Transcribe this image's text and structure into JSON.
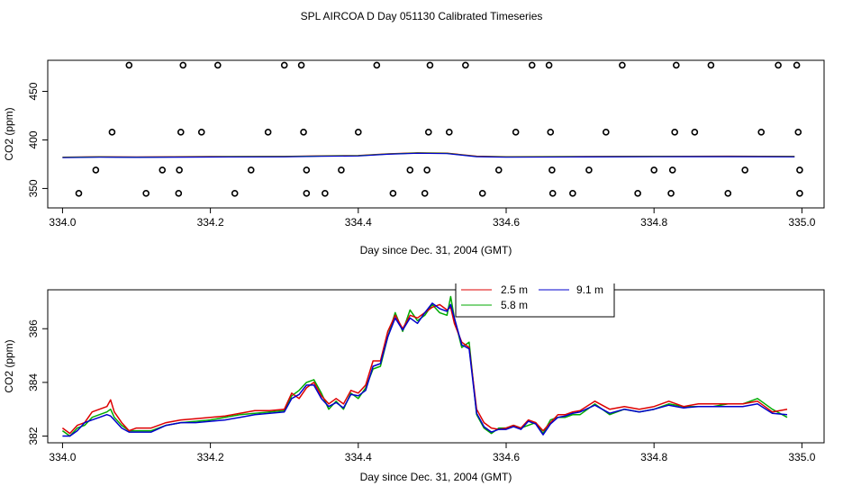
{
  "chart_data": {
    "title": "SPL AIRCOA D  Day 051130  Calibrated Timeseries",
    "panels": [
      {
        "type": "scatter+line",
        "xlabel": "Day since Dec. 31, 2004 (GMT)",
        "ylabel": "CO2 (ppm)",
        "xlim": [
          333.98,
          335.03
        ],
        "ylim": [
          330,
          482
        ],
        "xticks": [
          334.0,
          334.2,
          334.4,
          334.6,
          334.8,
          335.0
        ],
        "xtick_labels": [
          "334.0",
          "334.2",
          "334.4",
          "334.6",
          "334.8",
          "335.0"
        ],
        "yticks": [
          350,
          400,
          450
        ],
        "ytick_labels": [
          "350",
          "400",
          "450"
        ],
        "points": {
          "y477": [
            334.09,
            334.163,
            334.21,
            334.3,
            334.323,
            334.425,
            334.497,
            334.545,
            334.635,
            334.658,
            334.757,
            334.83,
            334.877,
            334.968,
            334.993
          ],
          "y408": [
            334.067,
            334.16,
            334.188,
            334.278,
            334.326,
            334.4,
            334.495,
            334.523,
            334.613,
            334.66,
            334.735,
            334.828,
            334.855,
            334.945,
            334.995
          ],
          "y369": [
            334.045,
            334.135,
            334.158,
            334.255,
            334.33,
            334.377,
            334.47,
            334.493,
            334.59,
            334.662,
            334.712,
            334.8,
            334.825,
            334.923,
            334.997
          ],
          "y345": [
            334.022,
            334.113,
            334.157,
            334.233,
            334.33,
            334.355,
            334.447,
            334.49,
            334.568,
            334.663,
            334.69,
            334.778,
            334.823,
            334.9,
            334.997
          ]
        },
        "line": {
          "x": [
            334.0,
            334.05,
            334.1,
            334.2,
            334.3,
            334.35,
            334.4,
            334.44,
            334.48,
            334.52,
            334.56,
            334.6,
            334.7,
            334.8,
            334.9,
            334.99
          ],
          "y": [
            382,
            382.5,
            382.3,
            382.6,
            382.8,
            383.4,
            383.8,
            385.5,
            386.5,
            386.2,
            383.0,
            382.5,
            382.7,
            382.9,
            383.0,
            382.8
          ]
        }
      },
      {
        "type": "line",
        "xlabel": "Day since Dec. 31, 2004 (GMT)",
        "ylabel": "CO2 (ppm)",
        "xlim": [
          333.98,
          335.03
        ],
        "ylim": [
          381.75,
          387.45
        ],
        "xticks": [
          334.0,
          334.2,
          334.4,
          334.6,
          334.8,
          335.0
        ],
        "xtick_labels": [
          "334.0",
          "334.2",
          "334.4",
          "334.6",
          "334.8",
          "335.0"
        ],
        "yticks": [
          382,
          384,
          386
        ],
        "ytick_labels": [
          "382",
          "384",
          "386"
        ],
        "legend": {
          "placement": "top-center",
          "entries": [
            "2.5 m",
            "5.8 m",
            "9.1 m"
          ]
        },
        "x": [
          334.0,
          334.01,
          334.02,
          334.03,
          334.04,
          334.05,
          334.06,
          334.065,
          334.07,
          334.08,
          334.09,
          334.1,
          334.12,
          334.14,
          334.16,
          334.18,
          334.2,
          334.22,
          334.24,
          334.26,
          334.28,
          334.3,
          334.31,
          334.32,
          334.33,
          334.34,
          334.35,
          334.36,
          334.37,
          334.38,
          334.39,
          334.4,
          334.41,
          334.42,
          334.43,
          334.44,
          334.45,
          334.46,
          334.47,
          334.48,
          334.49,
          334.5,
          334.51,
          334.52,
          334.525,
          334.53,
          334.54,
          334.55,
          334.56,
          334.57,
          334.58,
          334.59,
          334.6,
          334.61,
          334.62,
          334.63,
          334.64,
          334.65,
          334.66,
          334.67,
          334.68,
          334.69,
          334.7,
          334.72,
          334.74,
          334.76,
          334.78,
          334.8,
          334.82,
          334.84,
          334.86,
          334.88,
          334.9,
          334.92,
          334.94,
          334.96,
          334.98
        ],
        "series": [
          {
            "name": "2.5 m",
            "color": "#dd0000",
            "values": [
              382.3,
              382.1,
              382.4,
              382.5,
              382.9,
              383.0,
              383.1,
              383.35,
              382.9,
              382.5,
              382.2,
              382.3,
              382.3,
              382.5,
              382.6,
              382.65,
              382.7,
              382.75,
              382.85,
              382.95,
              382.95,
              383.0,
              383.6,
              383.4,
              383.8,
              384.0,
              383.5,
              383.2,
              383.4,
              383.2,
              383.7,
              383.6,
              383.9,
              384.8,
              384.8,
              385.9,
              386.5,
              386.0,
              386.5,
              386.4,
              386.6,
              386.8,
              386.9,
              386.7,
              386.8,
              386.2,
              385.5,
              385.3,
              383.0,
              382.5,
              382.3,
              382.25,
              382.3,
              382.4,
              382.3,
              382.6,
              382.5,
              382.2,
              382.5,
              382.8,
              382.8,
              382.9,
              382.95,
              383.3,
              383.0,
              383.1,
              383.0,
              383.1,
              383.3,
              383.1,
              383.2,
              383.2,
              383.2,
              383.2,
              383.3,
              382.9,
              383.0
            ]
          },
          {
            "name": "5.8 m",
            "color": "#00aa00",
            "values": [
              382.2,
              382.0,
              382.3,
              382.4,
              382.7,
              382.8,
              382.9,
              383.0,
              382.7,
              382.4,
              382.2,
              382.2,
              382.2,
              382.4,
              382.5,
              382.55,
              382.6,
              382.7,
              382.8,
              382.85,
              382.9,
              382.95,
              383.5,
              383.7,
              384.0,
              384.1,
              383.6,
              383.0,
              383.3,
              383.0,
              383.6,
              383.4,
              383.8,
              384.5,
              384.6,
              385.7,
              386.6,
              385.9,
              386.7,
              386.3,
              386.5,
              386.9,
              386.6,
              386.5,
              387.2,
              386.4,
              385.3,
              385.5,
              382.8,
              382.3,
              382.1,
              382.3,
              382.3,
              382.4,
              382.3,
              382.4,
              382.5,
              382.1,
              382.6,
              382.7,
              382.7,
              382.8,
              382.8,
              383.2,
              382.8,
              383.0,
              382.9,
              383.0,
              383.2,
              383.1,
              383.1,
              383.1,
              383.2,
              383.2,
              383.4,
              383.0,
              382.7
            ]
          },
          {
            "name": "9.1 m",
            "color": "#0000cc",
            "values": [
              382.0,
              382.0,
              382.2,
              382.5,
              382.6,
              382.7,
              382.8,
              382.75,
              382.6,
              382.3,
              382.15,
              382.15,
              382.15,
              382.4,
              382.5,
              382.5,
              382.55,
              382.6,
              382.7,
              382.8,
              382.85,
              382.9,
              383.4,
              383.55,
              383.9,
              383.9,
              383.4,
              383.1,
              383.25,
              383.05,
              383.55,
              383.5,
              383.7,
              384.6,
              384.7,
              385.7,
              386.4,
              385.95,
              386.4,
              386.2,
              386.6,
              386.95,
              386.75,
              386.65,
              386.9,
              386.4,
              385.4,
              385.25,
              382.85,
              382.35,
              382.15,
              382.25,
              382.25,
              382.35,
              382.25,
              382.55,
              382.45,
              382.05,
              382.45,
              382.7,
              382.75,
              382.85,
              382.9,
              383.15,
              382.85,
              383.0,
              382.9,
              383.0,
              383.15,
              383.05,
              383.1,
              383.1,
              383.1,
              383.1,
              383.2,
              382.85,
              382.8
            ]
          }
        ]
      }
    ]
  }
}
